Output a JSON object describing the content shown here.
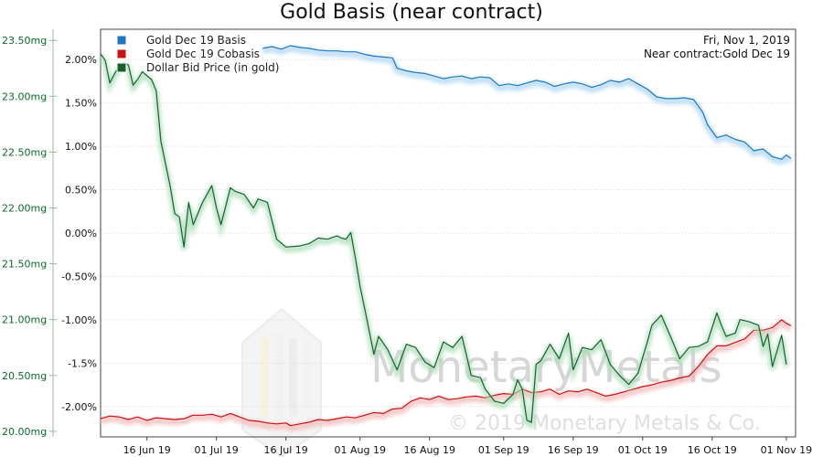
{
  "chart_data": {
    "type": "line",
    "title": "Gold Basis (near contract)",
    "date_label": "Fri, Nov 1, 2019",
    "contract_label": "Near contract:Gold Dec 19",
    "watermark": {
      "brand": "MonetaryMetals",
      "copyright": "© 2019 Monetary Metals & Co."
    },
    "x_ticks": [
      "16 Jun 19",
      "01 Jul 19",
      "16 Jul 19",
      "01 Aug 19",
      "16 Aug 19",
      "01 Sep 19",
      "16 Sep 19",
      "01 Oct 19",
      "16 Oct 19",
      "01 Nov 19"
    ],
    "x_range": [
      "2019-06-06",
      "2019-11-03"
    ],
    "right_axis": {
      "ticks": [
        "2.00%",
        "1.50%",
        "1.00%",
        "0.50%",
        "0.00%",
        "-0.50%",
        "-1.00%",
        "-1.5%",
        "-2.00%"
      ],
      "tick_values": [
        2.0,
        1.5,
        1.0,
        0.5,
        0.0,
        -0.5,
        -1.0,
        -1.5,
        -2.0
      ],
      "range": [
        -2.35,
        2.35
      ]
    },
    "left_axis": {
      "ticks": [
        "23.50mg",
        "23.00mg",
        "22.50mg",
        "22.00mg",
        "21.50mg",
        "21.00mg",
        "20.50mg",
        "20.00mg"
      ],
      "tick_values": [
        23.5,
        23.0,
        22.5,
        22.0,
        21.5,
        21.0,
        20.5,
        20.0
      ],
      "range": [
        19.95,
        23.6
      ]
    },
    "series": [
      {
        "name": "Gold Dec 19 Basis",
        "color": "#1f77c4",
        "axis": "right",
        "points": [
          [
            "2019-07-11",
            2.13
          ],
          [
            "2019-07-13",
            2.15
          ],
          [
            "2019-07-15",
            2.12
          ],
          [
            "2019-07-17",
            2.16
          ],
          [
            "2019-07-19",
            2.14
          ],
          [
            "2019-07-21",
            2.13
          ],
          [
            "2019-07-23",
            2.11
          ],
          [
            "2019-07-25",
            2.1
          ],
          [
            "2019-07-27",
            2.1
          ],
          [
            "2019-07-29",
            2.09
          ],
          [
            "2019-07-31",
            2.09
          ],
          [
            "2019-08-02",
            2.06
          ],
          [
            "2019-08-04",
            2.04
          ],
          [
            "2019-08-06",
            2.03
          ],
          [
            "2019-08-08",
            2.02
          ],
          [
            "2019-08-09",
            1.9
          ],
          [
            "2019-08-11",
            1.87
          ],
          [
            "2019-08-13",
            1.85
          ],
          [
            "2019-08-15",
            1.84
          ],
          [
            "2019-08-17",
            1.81
          ],
          [
            "2019-08-19",
            1.78
          ],
          [
            "2019-08-21",
            1.8
          ],
          [
            "2019-08-23",
            1.81
          ],
          [
            "2019-08-25",
            1.78
          ],
          [
            "2019-08-27",
            1.8
          ],
          [
            "2019-08-29",
            1.79
          ],
          [
            "2019-08-31",
            1.7
          ],
          [
            "2019-09-02",
            1.72
          ],
          [
            "2019-09-04",
            1.7
          ],
          [
            "2019-09-06",
            1.73
          ],
          [
            "2019-09-08",
            1.76
          ],
          [
            "2019-09-10",
            1.74
          ],
          [
            "2019-09-12",
            1.69
          ],
          [
            "2019-09-14",
            1.72
          ],
          [
            "2019-09-16",
            1.74
          ],
          [
            "2019-09-18",
            1.72
          ],
          [
            "2019-09-20",
            1.68
          ],
          [
            "2019-09-22",
            1.71
          ],
          [
            "2019-09-24",
            1.76
          ],
          [
            "2019-09-26",
            1.74
          ],
          [
            "2019-09-28",
            1.78
          ],
          [
            "2019-09-30",
            1.72
          ],
          [
            "2019-10-02",
            1.66
          ],
          [
            "2019-10-04",
            1.57
          ],
          [
            "2019-10-06",
            1.55
          ],
          [
            "2019-10-08",
            1.55
          ],
          [
            "2019-10-10",
            1.56
          ],
          [
            "2019-10-12",
            1.54
          ],
          [
            "2019-10-14",
            1.39
          ],
          [
            "2019-10-15",
            1.25
          ],
          [
            "2019-10-17",
            1.1
          ],
          [
            "2019-10-19",
            1.13
          ],
          [
            "2019-10-21",
            1.08
          ],
          [
            "2019-10-23",
            1.05
          ],
          [
            "2019-10-25",
            0.95
          ],
          [
            "2019-10-27",
            0.97
          ],
          [
            "2019-10-29",
            0.88
          ],
          [
            "2019-10-31",
            0.85
          ],
          [
            "2019-11-01",
            0.9
          ],
          [
            "2019-11-02",
            0.86
          ]
        ]
      },
      {
        "name": "Gold Dec 19 Cobasis",
        "color": "#cc1111",
        "axis": "right",
        "points": [
          [
            "2019-06-06",
            -2.14
          ],
          [
            "2019-06-08",
            -2.11
          ],
          [
            "2019-06-10",
            -2.12
          ],
          [
            "2019-06-12",
            -2.15
          ],
          [
            "2019-06-14",
            -2.12
          ],
          [
            "2019-06-16",
            -2.16
          ],
          [
            "2019-06-18",
            -2.13
          ],
          [
            "2019-06-20",
            -2.14
          ],
          [
            "2019-06-22",
            -2.15
          ],
          [
            "2019-06-24",
            -2.14
          ],
          [
            "2019-06-26",
            -2.1
          ],
          [
            "2019-06-28",
            -2.1
          ],
          [
            "2019-06-30",
            -2.09
          ],
          [
            "2019-07-02",
            -2.12
          ],
          [
            "2019-07-04",
            -2.08
          ],
          [
            "2019-07-06",
            -2.12
          ],
          [
            "2019-07-08",
            -2.16
          ],
          [
            "2019-07-10",
            -2.17
          ],
          [
            "2019-07-12",
            -2.19
          ],
          [
            "2019-07-14",
            -2.2
          ],
          [
            "2019-07-16",
            -2.19
          ],
          [
            "2019-07-17",
            -2.22
          ],
          [
            "2019-07-19",
            -2.2
          ],
          [
            "2019-07-21",
            -2.18
          ],
          [
            "2019-07-23",
            -2.15
          ],
          [
            "2019-07-25",
            -2.16
          ],
          [
            "2019-07-27",
            -2.14
          ],
          [
            "2019-07-29",
            -2.12
          ],
          [
            "2019-07-31",
            -2.13
          ],
          [
            "2019-08-02",
            -2.1
          ],
          [
            "2019-08-04",
            -2.07
          ],
          [
            "2019-08-06",
            -2.08
          ],
          [
            "2019-08-08",
            -2.03
          ],
          [
            "2019-08-10",
            -2.02
          ],
          [
            "2019-08-12",
            -1.94
          ],
          [
            "2019-08-14",
            -1.9
          ],
          [
            "2019-08-16",
            -1.92
          ],
          [
            "2019-08-18",
            -1.88
          ],
          [
            "2019-08-20",
            -1.92
          ],
          [
            "2019-08-22",
            -1.91
          ],
          [
            "2019-08-24",
            -1.89
          ],
          [
            "2019-08-26",
            -1.88
          ],
          [
            "2019-08-28",
            -1.9
          ],
          [
            "2019-08-30",
            -1.87
          ],
          [
            "2019-09-01",
            -1.85
          ],
          [
            "2019-09-03",
            -1.86
          ],
          [
            "2019-09-05",
            -1.8
          ],
          [
            "2019-09-07",
            -1.84
          ],
          [
            "2019-09-09",
            -1.83
          ],
          [
            "2019-09-11",
            -1.8
          ],
          [
            "2019-09-13",
            -1.86
          ],
          [
            "2019-09-15",
            -1.82
          ],
          [
            "2019-09-17",
            -1.83
          ],
          [
            "2019-09-19",
            -1.8
          ],
          [
            "2019-09-21",
            -1.84
          ],
          [
            "2019-09-23",
            -1.88
          ],
          [
            "2019-09-25",
            -1.86
          ],
          [
            "2019-09-27",
            -1.83
          ],
          [
            "2019-09-29",
            -1.8
          ],
          [
            "2019-10-01",
            -1.77
          ],
          [
            "2019-10-03",
            -1.75
          ],
          [
            "2019-10-05",
            -1.72
          ],
          [
            "2019-10-07",
            -1.7
          ],
          [
            "2019-10-09",
            -1.67
          ],
          [
            "2019-10-11",
            -1.65
          ],
          [
            "2019-10-13",
            -1.54
          ],
          [
            "2019-10-15",
            -1.4
          ],
          [
            "2019-10-17",
            -1.3
          ],
          [
            "2019-10-19",
            -1.3
          ],
          [
            "2019-10-21",
            -1.26
          ],
          [
            "2019-10-23",
            -1.22
          ],
          [
            "2019-10-25",
            -1.12
          ],
          [
            "2019-10-27",
            -1.12
          ],
          [
            "2019-10-29",
            -1.09
          ],
          [
            "2019-10-31",
            -1.0
          ],
          [
            "2019-11-01",
            -1.04
          ],
          [
            "2019-11-02",
            -1.07
          ]
        ]
      },
      {
        "name": "Dollar Bid Price (in gold)",
        "color": "#17602e",
        "axis": "left",
        "points": [
          [
            "2019-06-06",
            23.38
          ],
          [
            "2019-06-07",
            23.32
          ],
          [
            "2019-06-08",
            23.12
          ],
          [
            "2019-06-09",
            23.2
          ],
          [
            "2019-06-10",
            23.27
          ],
          [
            "2019-06-11",
            23.3
          ],
          [
            "2019-06-12",
            23.28
          ],
          [
            "2019-06-13",
            23.1
          ],
          [
            "2019-06-14",
            23.15
          ],
          [
            "2019-06-15",
            23.22
          ],
          [
            "2019-06-17",
            23.15
          ],
          [
            "2019-06-18",
            23.05
          ],
          [
            "2019-06-19",
            22.6
          ],
          [
            "2019-06-20",
            22.4
          ],
          [
            "2019-06-21",
            22.2
          ],
          [
            "2019-06-22",
            21.95
          ],
          [
            "2019-06-23",
            21.92
          ],
          [
            "2019-06-24",
            21.65
          ],
          [
            "2019-06-25",
            22.05
          ],
          [
            "2019-06-26",
            21.85
          ],
          [
            "2019-06-28",
            22.05
          ],
          [
            "2019-06-30",
            22.2
          ],
          [
            "2019-07-01",
            22.0
          ],
          [
            "2019-07-02",
            21.85
          ],
          [
            "2019-07-04",
            22.18
          ],
          [
            "2019-07-05",
            22.15
          ],
          [
            "2019-07-07",
            22.12
          ],
          [
            "2019-07-09",
            22.0
          ],
          [
            "2019-07-10",
            22.08
          ],
          [
            "2019-07-12",
            22.05
          ],
          [
            "2019-07-14",
            21.72
          ],
          [
            "2019-07-16",
            21.65
          ],
          [
            "2019-07-19",
            21.66
          ],
          [
            "2019-07-21",
            21.68
          ],
          [
            "2019-07-23",
            21.73
          ],
          [
            "2019-07-25",
            21.72
          ],
          [
            "2019-07-27",
            21.75
          ],
          [
            "2019-07-28",
            21.73
          ],
          [
            "2019-07-29",
            21.72
          ],
          [
            "2019-07-30",
            21.78
          ],
          [
            "2019-07-31",
            21.55
          ],
          [
            "2019-08-01",
            21.3
          ],
          [
            "2019-08-02",
            21.1
          ],
          [
            "2019-08-04",
            20.69
          ],
          [
            "2019-08-05",
            20.85
          ],
          [
            "2019-08-07",
            20.73
          ],
          [
            "2019-08-09",
            20.55
          ],
          [
            "2019-08-11",
            20.78
          ],
          [
            "2019-08-13",
            20.75
          ],
          [
            "2019-08-15",
            20.62
          ],
          [
            "2019-08-17",
            20.57
          ],
          [
            "2019-08-19",
            20.8
          ],
          [
            "2019-08-21",
            20.75
          ],
          [
            "2019-08-23",
            20.85
          ],
          [
            "2019-08-25",
            20.5
          ],
          [
            "2019-08-27",
            20.48
          ],
          [
            "2019-08-28",
            20.38
          ],
          [
            "2019-08-30",
            20.27
          ],
          [
            "2019-09-01",
            20.25
          ],
          [
            "2019-09-03",
            20.33
          ],
          [
            "2019-09-04",
            20.46
          ],
          [
            "2019-09-05",
            20.38
          ],
          [
            "2019-09-06",
            20.1
          ],
          [
            "2019-09-07",
            20.08
          ],
          [
            "2019-09-08",
            20.6
          ],
          [
            "2019-09-09",
            20.63
          ],
          [
            "2019-09-11",
            20.78
          ],
          [
            "2019-09-13",
            20.65
          ],
          [
            "2019-09-15",
            20.88
          ],
          [
            "2019-09-16",
            20.55
          ],
          [
            "2019-09-18",
            20.75
          ],
          [
            "2019-09-20",
            20.73
          ],
          [
            "2019-09-22",
            20.82
          ],
          [
            "2019-09-24",
            20.6
          ],
          [
            "2019-09-26",
            20.5
          ],
          [
            "2019-09-28",
            20.42
          ],
          [
            "2019-09-30",
            20.52
          ],
          [
            "2019-10-02",
            20.8
          ],
          [
            "2019-10-03",
            20.95
          ],
          [
            "2019-10-05",
            21.04
          ],
          [
            "2019-10-07",
            20.85
          ],
          [
            "2019-10-08",
            20.75
          ],
          [
            "2019-10-09",
            20.65
          ],
          [
            "2019-10-11",
            20.75
          ],
          [
            "2019-10-13",
            20.76
          ],
          [
            "2019-10-15",
            20.8
          ],
          [
            "2019-10-17",
            21.06
          ],
          [
            "2019-10-18",
            20.95
          ],
          [
            "2019-10-19",
            20.85
          ],
          [
            "2019-10-21",
            20.88
          ],
          [
            "2019-10-22",
            21.0
          ],
          [
            "2019-10-24",
            20.98
          ],
          [
            "2019-10-26",
            20.95
          ],
          [
            "2019-10-27",
            20.76
          ],
          [
            "2019-10-28",
            20.87
          ],
          [
            "2019-10-29",
            20.58
          ],
          [
            "2019-10-31",
            20.86
          ],
          [
            "2019-11-01",
            20.6
          ]
        ]
      }
    ]
  }
}
